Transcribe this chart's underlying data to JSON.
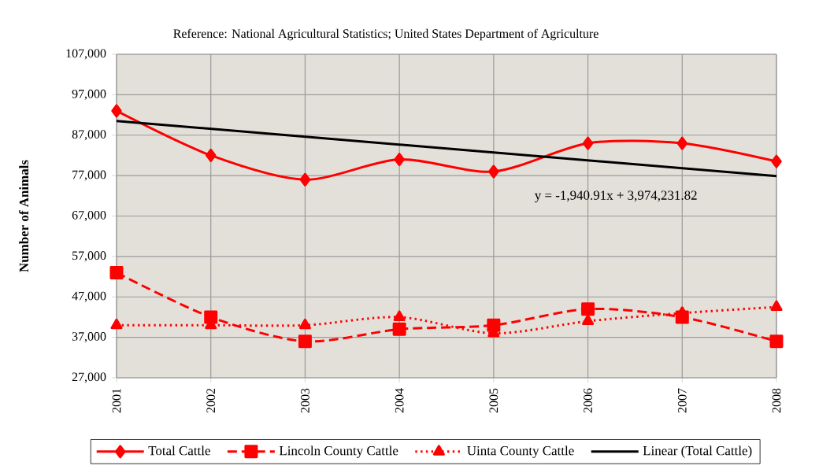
{
  "chart_data": {
    "type": "line",
    "title": "Reference:  National Agricultural Statistics; United States Department of Agriculture",
    "ylabel": "Number of Animals",
    "x": [
      2001,
      2002,
      2003,
      2004,
      2005,
      2006,
      2007,
      2008
    ],
    "series": [
      {
        "name": "Total Cattle",
        "color": "#ff0000",
        "marker": "diamond",
        "line_style": "solid",
        "values": [
          93000,
          82000,
          76000,
          81000,
          78000,
          85000,
          85000,
          80500
        ]
      },
      {
        "name": "Lincoln County Cattle",
        "color": "#ff0000",
        "marker": "square",
        "line_style": "dashed",
        "values": [
          53000,
          42000,
          36000,
          39000,
          40000,
          44000,
          42000,
          36000
        ]
      },
      {
        "name": "Uinta County Cattle",
        "color": "#ff0000",
        "marker": "triangle",
        "line_style": "dotted",
        "values": [
          40000,
          40000,
          40000,
          42000,
          38000,
          41000,
          43000,
          44500
        ]
      },
      {
        "name": "Linear (Total Cattle)",
        "color": "#000000",
        "marker": "none",
        "line_style": "solid",
        "type": "line",
        "x": [
          2001,
          2008
        ],
        "values": [
          90500,
          76900
        ]
      }
    ],
    "annotations": [
      "y = -1,940.91x + 3,974,231.82"
    ],
    "xlim": [
      2001,
      2008
    ],
    "xticks": [
      2001,
      2002,
      2003,
      2004,
      2005,
      2006,
      2007,
      2008
    ],
    "ylim": [
      27000,
      107000
    ],
    "yticks": [
      {
        "value": 27000,
        "label": "27,000"
      },
      {
        "value": 37000,
        "label": "37,000"
      },
      {
        "value": 47000,
        "label": "47,000"
      },
      {
        "value": 57000,
        "label": "57,000"
      },
      {
        "value": 67000,
        "label": "67,000"
      },
      {
        "value": 77000,
        "label": "77,000"
      },
      {
        "value": 87000,
        "label": "87,000"
      },
      {
        "value": 97000,
        "label": "97,000"
      },
      {
        "value": 107000,
        "label": "107,000"
      }
    ],
    "grid": true,
    "legend": "bottom"
  }
}
